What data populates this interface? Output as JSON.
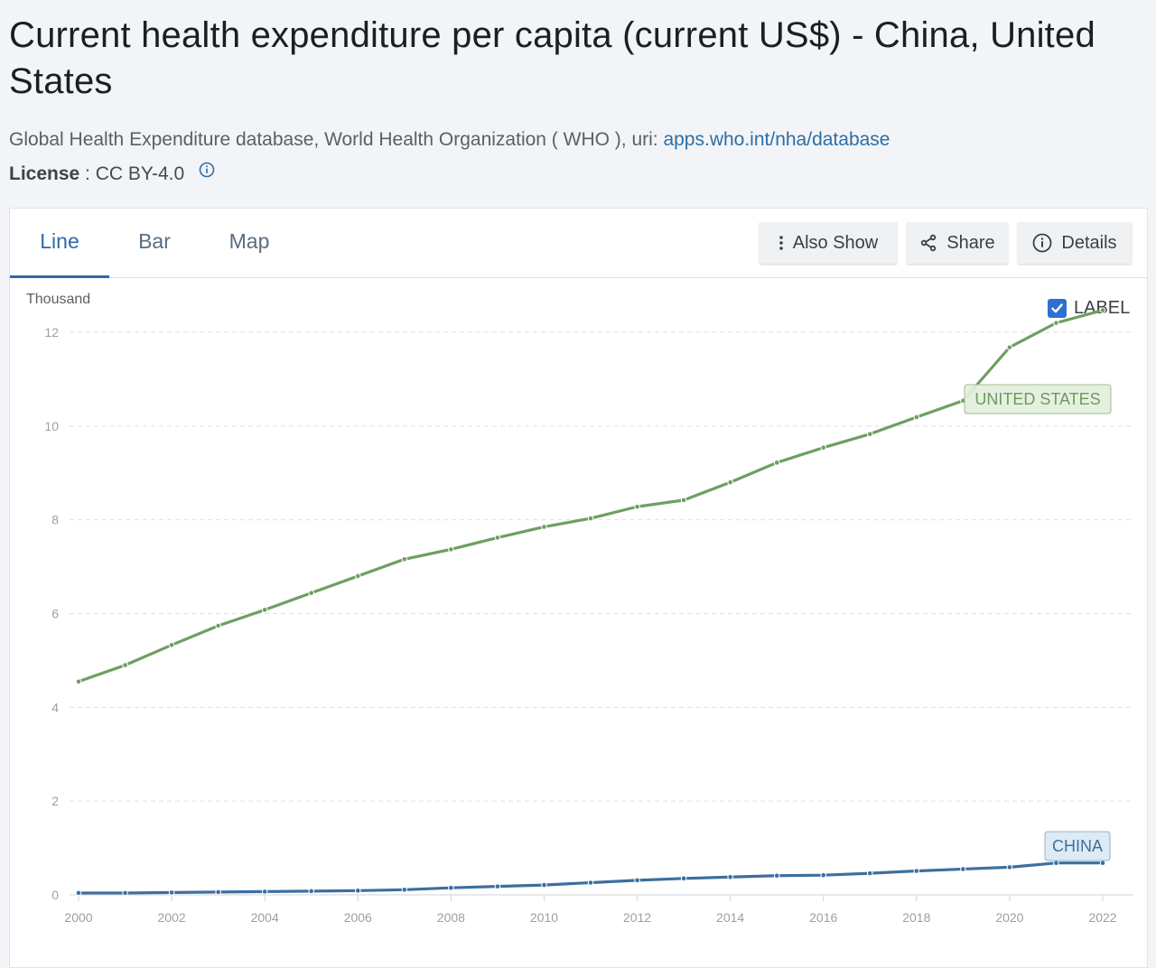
{
  "header": {
    "title": "Current health expenditure per capita (current US$) - China, United States",
    "source_text": "Global Health Expenditure database, World Health Organization ( WHO ), uri: ",
    "source_link": "apps.who.int/nha/database",
    "license_label": "License",
    "license_value": " : CC BY-4.0"
  },
  "tabs": [
    {
      "label": "Line",
      "active": true
    },
    {
      "label": "Bar",
      "active": false
    },
    {
      "label": "Map",
      "active": false
    }
  ],
  "toolbar": {
    "also_show": "Also Show",
    "share": "Share",
    "details": "Details"
  },
  "chart_controls": {
    "unit_label": "Thousand",
    "label_toggle": "LABEL",
    "label_checked": true
  },
  "colors": {
    "us": "#6f9e62",
    "china": "#3d6f9f",
    "grid": "#dcdfe3",
    "us_tag_bg": "#e3efdd",
    "us_tag_border": "#9cc08e",
    "china_tag_bg": "#dbe8f3",
    "china_tag_border": "#8fb1cf"
  },
  "chart_data": {
    "type": "line",
    "x": [
      2000,
      2001,
      2002,
      2003,
      2004,
      2005,
      2006,
      2007,
      2008,
      2009,
      2010,
      2011,
      2012,
      2013,
      2014,
      2015,
      2016,
      2017,
      2018,
      2019,
      2020,
      2021,
      2022
    ],
    "xticks": [
      2000,
      2002,
      2004,
      2006,
      2008,
      2010,
      2012,
      2014,
      2016,
      2018,
      2020,
      2022
    ],
    "yticks": [
      0,
      2,
      4,
      6,
      8,
      10,
      12
    ],
    "ylim": [
      0,
      13
    ],
    "ylabel": "Thousand",
    "grid": true,
    "series": [
      {
        "name": "UNITED STATES",
        "values": [
          4.55,
          4.9,
          5.33,
          5.74,
          6.08,
          6.44,
          6.8,
          7.16,
          7.37,
          7.62,
          7.85,
          8.03,
          8.28,
          8.42,
          8.8,
          9.22,
          9.54,
          9.83,
          10.19,
          10.54,
          11.68,
          12.2,
          12.47
        ]
      },
      {
        "name": "CHINA",
        "values": [
          0.04,
          0.04,
          0.05,
          0.06,
          0.07,
          0.08,
          0.09,
          0.11,
          0.15,
          0.18,
          0.21,
          0.26,
          0.31,
          0.35,
          0.38,
          0.41,
          0.42,
          0.46,
          0.51,
          0.55,
          0.59,
          0.68,
          0.68
        ]
      }
    ]
  }
}
